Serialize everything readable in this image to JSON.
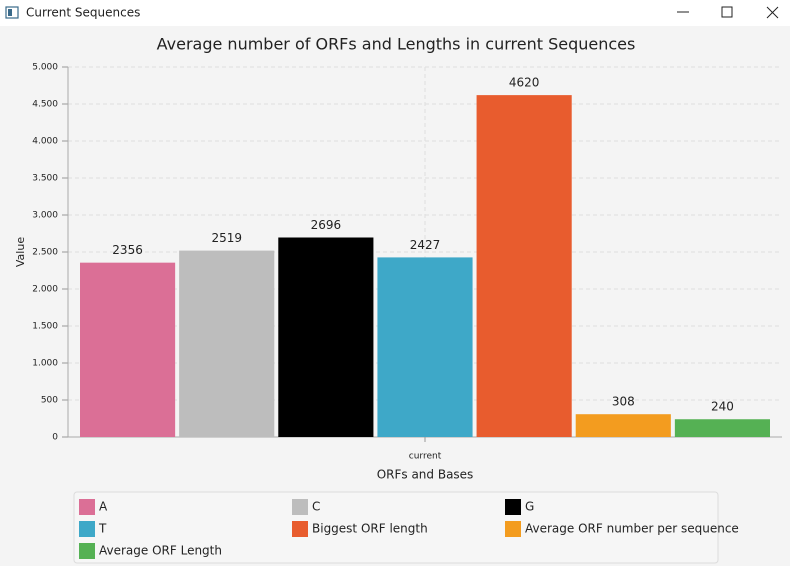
{
  "window": {
    "title": "Current Sequences"
  },
  "chart_data": {
    "type": "bar",
    "title": "Average number of ORFs and Lengths in current Sequences",
    "x_label": "ORFs and Bases",
    "y_label": "Value",
    "categories": [
      "current"
    ],
    "series": [
      {
        "name": "A",
        "color": "#db6f96",
        "values": [
          2356
        ]
      },
      {
        "name": "C",
        "color": "#bdbdbd",
        "values": [
          2519
        ]
      },
      {
        "name": "G",
        "color": "#000000",
        "values": [
          2696
        ]
      },
      {
        "name": "T",
        "color": "#3ea8c8",
        "values": [
          2427
        ]
      },
      {
        "name": "Biggest ORF length",
        "color": "#e85c2e",
        "values": [
          4620
        ]
      },
      {
        "name": "Average ORF number per sequence",
        "color": "#f39c1f",
        "values": [
          308
        ]
      },
      {
        "name": "Average ORF Length",
        "color": "#55b154",
        "values": [
          240
        ]
      }
    ],
    "ylim": [
      0,
      5000
    ],
    "yticks": [
      0,
      500,
      {
        "value": 1000,
        "label": "1.000"
      },
      {
        "value": 1500,
        "label": "1.500"
      },
      {
        "value": 2000,
        "label": "2.000"
      },
      {
        "value": 2500,
        "label": "2.500"
      },
      {
        "value": 3000,
        "label": "3.000"
      },
      {
        "value": 3500,
        "label": "3.500"
      },
      {
        "value": 4000,
        "label": "4.000"
      },
      {
        "value": 4500,
        "label": "4.500"
      },
      {
        "value": 5000,
        "label": "5.000"
      }
    ],
    "grid": true
  }
}
